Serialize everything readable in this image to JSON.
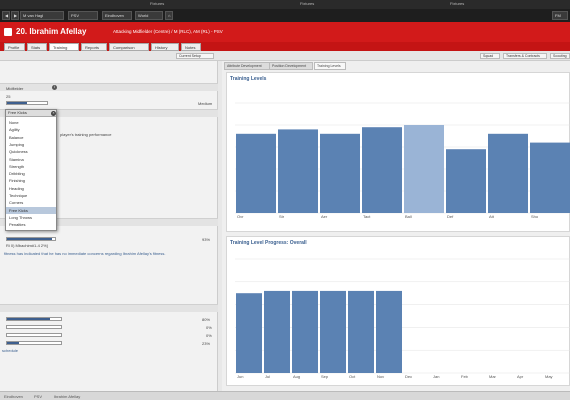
{
  "titlebar": {
    "tab1": "Fixtures",
    "tab2": "Fixtures",
    "tab3": "Fixtures"
  },
  "topnav": {
    "search_text": "M van Hagl",
    "club": "PSV",
    "nav1": "Eindhoven",
    "nav2": "World",
    "fm_btn": "FM"
  },
  "header": {
    "name": "20. Ibrahim Afellay",
    "position": "Attacking Midfielder (Centre) / M (RLC), AM (RL) - PSV"
  },
  "tabs": [
    "Profile",
    "Stats",
    "Training",
    "Reports",
    "Comparison",
    "History",
    "Notes"
  ],
  "subbar": {
    "view_btn": "Current Setup",
    "right_btn1": "Squad",
    "right_btn2": "Transfers & Contracts",
    "right_btn3": "Scouting"
  },
  "left": {
    "role": "Midfielder",
    "age": "25",
    "workload": "Medium",
    "focus_selected": "Free Kicks",
    "focus_note": "player's training performance",
    "focus_options": [
      "None",
      "Agility",
      "Balance",
      "Jumping",
      "Quickness",
      "Stamina",
      "Strength",
      "Dribbling",
      "Finishing",
      "Heading",
      "Technique",
      "Corners",
      "Free Kicks",
      "Long Throws",
      "Penalties"
    ],
    "fitness_pct": "93%",
    "fitness_label": "Ri 0) Mbachim#1-4 2%]",
    "fitness_note": "fitness has indicated that he has no immediate concerns regarding Ibrahim Afellay's fitness.",
    "bars": [
      {
        "pct": "80%",
        "fill": 0.8
      },
      {
        "pct": "0%",
        "fill": 0
      },
      {
        "pct": "0%",
        "fill": 0
      },
      {
        "pct": "23%",
        "fill": 0.23
      }
    ],
    "bottom_label": "schedule",
    "workload_fill": 0.5,
    "fitness_fill": 0.93
  },
  "right": {
    "tabs": [
      "Attribute Development",
      "Position Development",
      "Training Levels"
    ],
    "chart1_title": "Training Levels",
    "chart2_title": "Training Level Progress: Overall"
  },
  "chart_data": [
    {
      "type": "bar",
      "title": "Training Levels",
      "categories": [
        "Ovr",
        "Str",
        "Aer",
        "Tact",
        "Ball",
        "Def",
        "Att",
        "Sho"
      ],
      "values": [
        0.72,
        0.76,
        0.72,
        0.78,
        0.8,
        0.58,
        0.72,
        0.64
      ],
      "highlight_index": 4,
      "ylim": [
        0,
        1
      ],
      "grid": true,
      "bar_color": "#5b82b3",
      "highlight_color": "#9ab4d6"
    },
    {
      "type": "bar",
      "title": "Training Level Progress: Overall",
      "categories": [
        "Jun",
        "Jul",
        "Aug",
        "Sep",
        "Oct",
        "Nov",
        "Dec",
        "Jan",
        "Feb",
        "Mar",
        "Apr",
        "May"
      ],
      "values": [
        0.7,
        0.72,
        0.72,
        0.72,
        0.72,
        0.72,
        null,
        null,
        null,
        null,
        null,
        null
      ],
      "ylim": [
        0,
        1
      ],
      "grid": true,
      "bar_color": "#5b82b3"
    }
  ],
  "footer": {
    "f1": "Eindhoven",
    "f2": "PSV",
    "f3": "Ibrahim Afellay"
  }
}
